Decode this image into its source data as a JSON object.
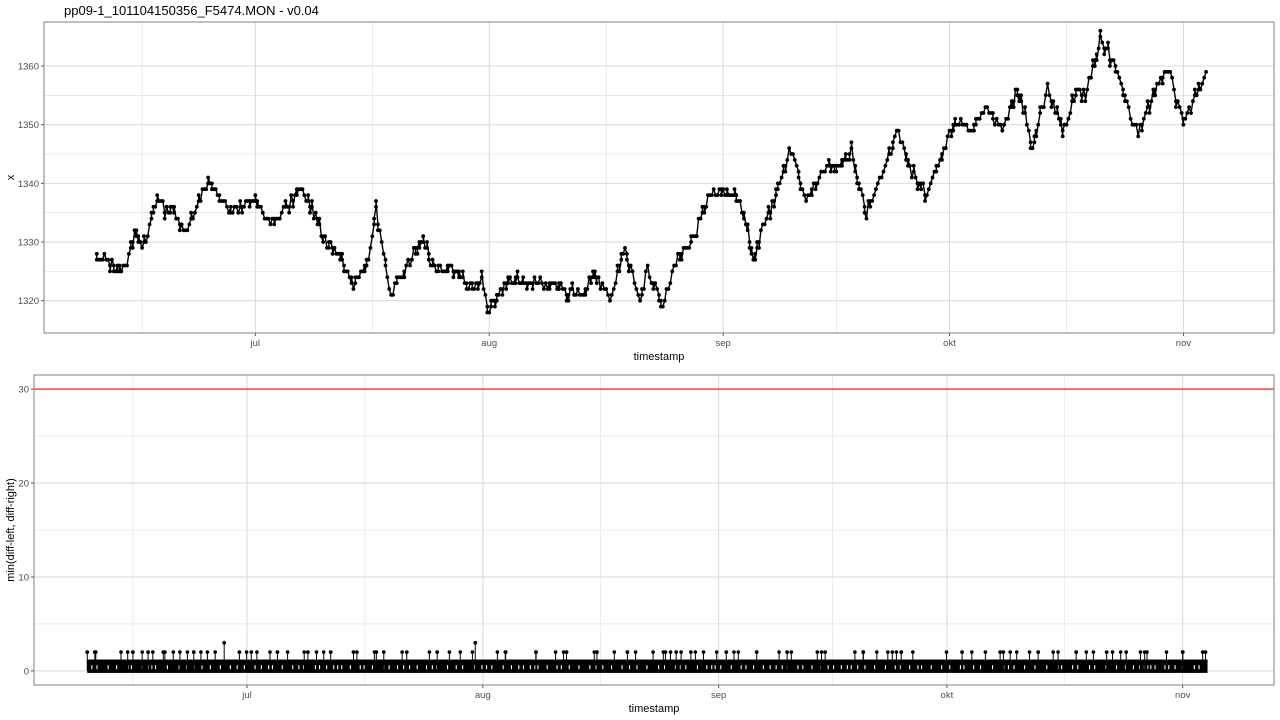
{
  "title": "pp09-1_101104150356_F5474.MON - v0.04",
  "colors": {
    "background": "#ffffff",
    "panel_border": "#7f7f7f",
    "grid": "#dcdcdc",
    "points": "#000000",
    "threshold": "#e8221b"
  },
  "chart_data": [
    {
      "type": "line",
      "xlabel": "timestamp",
      "ylabel": "x",
      "x_ticks": [
        "jul",
        "aug",
        "sep",
        "okt",
        "nov"
      ],
      "x_tick_dates": [
        "2010-07-01",
        "2010-08-01",
        "2010-09-01",
        "2010-10-01",
        "2010-11-01"
      ],
      "xlim": [
        "2010-06-03",
        "2010-11-13"
      ],
      "ylim": [
        1314.5,
        1367.5
      ],
      "y_ticks": [
        1320,
        1330,
        1340,
        1350,
        1360
      ],
      "grid": true,
      "markers": true,
      "series": [
        {
          "x": [
            "2010-06-10",
            "2010-06-11",
            "2010-06-12",
            "2010-06-13",
            "2010-06-14",
            "2010-06-15",
            "2010-06-16",
            "2010-06-18",
            "2010-06-20",
            "2010-06-22",
            "2010-06-24",
            "2010-06-25",
            "2010-06-27",
            "2010-06-29",
            "2010-07-01",
            "2010-07-03",
            "2010-07-05",
            "2010-07-07",
            "2010-07-09",
            "2010-07-10",
            "2010-07-12",
            "2010-07-14",
            "2010-07-16",
            "2010-07-17",
            "2010-07-19",
            "2010-07-21",
            "2010-07-23",
            "2010-07-25",
            "2010-07-27",
            "2010-07-29",
            "2010-07-31",
            "2010-08-01",
            "2010-08-03",
            "2010-08-05",
            "2010-08-07",
            "2010-08-09",
            "2010-08-11",
            "2010-08-13",
            "2010-08-15",
            "2010-08-17",
            "2010-08-19",
            "2010-08-21",
            "2010-08-22",
            "2010-08-24",
            "2010-08-26",
            "2010-08-28",
            "2010-08-30",
            "2010-09-01",
            "2010-09-03",
            "2010-09-05",
            "2010-09-07",
            "2010-09-08",
            "2010-09-10",
            "2010-09-12",
            "2010-09-14",
            "2010-09-16",
            "2010-09-18",
            "2010-09-20",
            "2010-09-22",
            "2010-09-24",
            "2010-09-26",
            "2010-09-28",
            "2010-09-30",
            "2010-10-02",
            "2010-10-04",
            "2010-10-06",
            "2010-10-08",
            "2010-10-10",
            "2010-10-12",
            "2010-10-14",
            "2010-10-16",
            "2010-10-18",
            "2010-10-19",
            "2010-10-21",
            "2010-10-23",
            "2010-10-25",
            "2010-10-26",
            "2010-10-28",
            "2010-10-30",
            "2010-11-01",
            "2010-11-03",
            "2010-11-04"
          ],
          "y": [
            1328,
            1327,
            1326,
            1325,
            1326,
            1332,
            1329,
            1337,
            1335,
            1332,
            1338,
            1340,
            1336,
            1336,
            1337,
            1333,
            1336,
            1339,
            1334,
            1330,
            1329,
            1322,
            1327,
            1336,
            1321,
            1326,
            1330,
            1325,
            1326,
            1323,
            1323,
            1318,
            1323,
            1324,
            1323,
            1323,
            1322,
            1321,
            1324,
            1320,
            1329,
            1320,
            1325,
            1320,
            1328,
            1330,
            1338,
            1339,
            1338,
            1327,
            1335,
            1338,
            1346,
            1337,
            1342,
            1343,
            1345,
            1335,
            1341,
            1349,
            1342,
            1338,
            1345,
            1351,
            1349,
            1353,
            1349,
            1356,
            1346,
            1357,
            1349,
            1356,
            1355,
            1365,
            1360,
            1351,
            1349,
            1355,
            1360,
            1350,
            1356,
            1359
          ]
        }
      ]
    },
    {
      "type": "scatter",
      "xlabel": "timestamp",
      "ylabel": "min(diff-left, diff-right)",
      "x_ticks": [
        "jul",
        "aug",
        "sep",
        "okt",
        "nov"
      ],
      "x_tick_dates": [
        "2010-07-01",
        "2010-08-01",
        "2010-09-01",
        "2010-10-01",
        "2010-11-01"
      ],
      "xlim": [
        "2010-06-03",
        "2010-11-13"
      ],
      "ylim": [
        -1.5,
        31.5
      ],
      "y_ticks": [
        0,
        10,
        20,
        30
      ],
      "grid": true,
      "reference_line": {
        "y": 30
      },
      "series": [
        {
          "x": [
            "2010-06-10",
            "2010-06-11",
            "2010-06-16",
            "2010-06-18",
            "2010-06-20",
            "2010-06-24",
            "2010-06-28",
            "2010-06-30",
            "2010-07-05",
            "2010-07-09",
            "2010-07-12",
            "2010-07-15",
            "2010-07-18",
            "2010-07-22",
            "2010-07-26",
            "2010-07-31",
            "2010-08-04",
            "2010-08-08",
            "2010-08-12",
            "2010-08-16",
            "2010-08-20",
            "2010-08-25",
            "2010-09-02",
            "2010-09-06",
            "2010-09-10",
            "2010-09-15",
            "2010-09-20",
            "2010-09-25",
            "2010-10-03",
            "2010-10-08",
            "2010-10-13",
            "2010-10-18",
            "2010-10-22",
            "2010-10-27",
            "2010-11-01",
            "2010-11-04"
          ],
          "y": [
            2,
            2,
            2,
            2,
            2,
            2,
            3,
            2,
            2,
            2,
            2,
            2,
            2,
            2,
            2,
            3,
            2,
            2,
            2,
            2,
            2,
            2,
            2,
            2,
            2,
            2,
            2,
            2,
            2,
            2,
            2,
            2,
            2,
            2,
            2,
            2
          ]
        }
      ]
    }
  ]
}
